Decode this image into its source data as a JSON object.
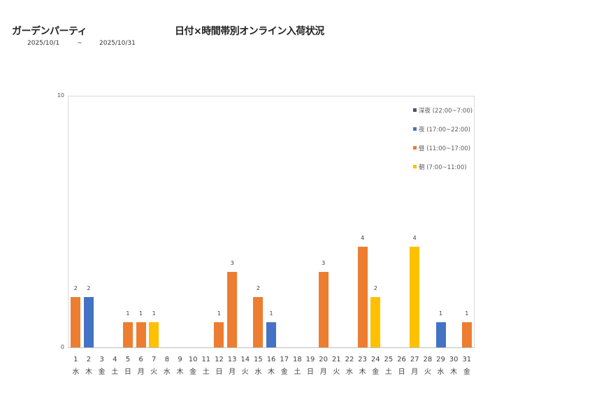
{
  "header": {
    "shop_name": "ガーデンパーティ",
    "title": "日付×時間帯別オンライン入荷状況",
    "date_from": "2025/10/1",
    "date_sep": "~",
    "date_to": "2025/10/31"
  },
  "colors": {
    "late_night": "#44546A",
    "night": "#4472C4",
    "day": "#ED7D31",
    "morning": "#FFC000"
  },
  "legend": [
    {
      "label": "深夜 (22:00~7:00)",
      "color": "#44546A"
    },
    {
      "label": "夜 (17:00~22:00)",
      "color": "#4472C4"
    },
    {
      "label": "昼 (11:00~17:00)",
      "color": "#ED7D31"
    },
    {
      "label": "朝 (7:00~11:00)",
      "color": "#FFC000"
    }
  ],
  "axis": {
    "y_max_label": "10",
    "y_min_label": "0"
  },
  "chart_data": {
    "type": "bar",
    "title": "日付×時間帯別オンライン入荷状況",
    "xlabel": "",
    "ylabel": "",
    "ylim": [
      0,
      10
    ],
    "grid": false,
    "legend_position": "top-right inside",
    "categories": [
      "1",
      "2",
      "3",
      "4",
      "5",
      "6",
      "7",
      "8",
      "9",
      "10",
      "11",
      "12",
      "13",
      "14",
      "15",
      "16",
      "17",
      "18",
      "19",
      "20",
      "21",
      "22",
      "23",
      "24",
      "25",
      "26",
      "27",
      "28",
      "29",
      "30",
      "31"
    ],
    "weekdays": [
      "水",
      "木",
      "金",
      "土",
      "日",
      "月",
      "火",
      "水",
      "木",
      "金",
      "土",
      "日",
      "月",
      "火",
      "水",
      "木",
      "金",
      "土",
      "日",
      "月",
      "火",
      "水",
      "木",
      "金",
      "土",
      "日",
      "月",
      "火",
      "水",
      "木",
      "金"
    ],
    "series": [
      {
        "name": "深夜 (22:00~7:00)",
        "values": [
          0,
          0,
          0,
          0,
          0,
          0,
          0,
          0,
          0,
          0,
          0,
          0,
          0,
          0,
          0,
          0,
          0,
          0,
          0,
          0,
          0,
          0,
          0,
          0,
          0,
          0,
          0,
          0,
          0,
          0,
          0
        ]
      },
      {
        "name": "夜 (17:00~22:00)",
        "values": [
          0,
          2,
          0,
          0,
          0,
          0,
          0,
          0,
          0,
          0,
          0,
          0,
          0,
          0,
          0,
          1,
          0,
          0,
          0,
          0,
          0,
          0,
          0,
          0,
          0,
          0,
          0,
          0,
          1,
          0,
          0
        ]
      },
      {
        "name": "昼 (11:00~17:00)",
        "values": [
          2,
          0,
          0,
          0,
          1,
          1,
          0,
          0,
          0,
          0,
          0,
          1,
          3,
          0,
          2,
          0,
          0,
          0,
          0,
          3,
          0,
          0,
          4,
          0,
          0,
          0,
          0,
          0,
          0,
          0,
          1
        ]
      },
      {
        "name": "朝 (7:00~11:00)",
        "values": [
          0,
          0,
          0,
          0,
          0,
          0,
          1,
          0,
          0,
          0,
          0,
          0,
          0,
          0,
          0,
          0,
          0,
          0,
          0,
          0,
          0,
          0,
          0,
          2,
          0,
          0,
          4,
          0,
          0,
          0,
          0
        ]
      }
    ],
    "totals": [
      2,
      2,
      0,
      0,
      1,
      1,
      1,
      0,
      0,
      0,
      0,
      1,
      3,
      0,
      2,
      1,
      0,
      0,
      0,
      3,
      0,
      0,
      4,
      2,
      0,
      0,
      4,
      0,
      1,
      0,
      1
    ]
  }
}
